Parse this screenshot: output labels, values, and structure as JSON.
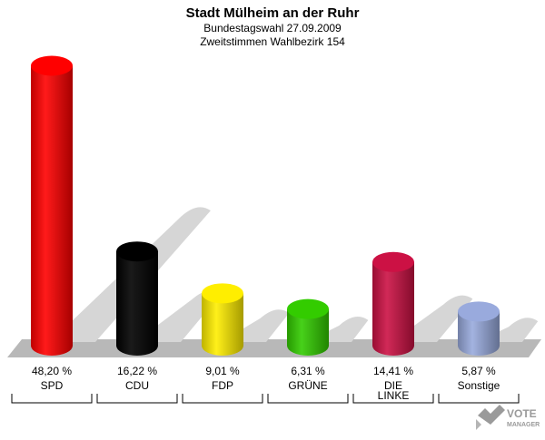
{
  "title": "Stadt Mülheim an der Ruhr",
  "subtitle1": "Bundestagswahl 27.09.2009",
  "subtitle2": "Zweitstimmen Wahlbezirk 154",
  "chart_data": {
    "type": "bar",
    "title": "Stadt Mülheim an der Ruhr",
    "subtitle": "Bundestagswahl 27.09.2009 – Zweitstimmen Wahlbezirk 154",
    "categories": [
      "SPD",
      "CDU",
      "FDP",
      "GRÜNE",
      "DIE LINKE",
      "Sonstige"
    ],
    "category_lines": [
      [
        "SPD"
      ],
      [
        "CDU"
      ],
      [
        "FDP"
      ],
      [
        "GRÜNE"
      ],
      [
        "DIE",
        "LINKE"
      ],
      [
        "Sonstige"
      ]
    ],
    "values": [
      48.2,
      16.22,
      9.01,
      6.31,
      14.41,
      5.87
    ],
    "value_labels": [
      "48,20 %",
      "16,22 %",
      "9,01 %",
      "6,31 %",
      "14,41 %",
      "5,87 %"
    ],
    "colors": [
      "#ff0000",
      "#000000",
      "#ffee00",
      "#33cc00",
      "#cc1144",
      "#99aadd"
    ],
    "ylim": [
      0,
      50
    ],
    "legend": "none",
    "grid": false
  },
  "logo": {
    "line1": "VOTE",
    "line2": "MANAGER",
    "icon": "checkmark-icon"
  }
}
